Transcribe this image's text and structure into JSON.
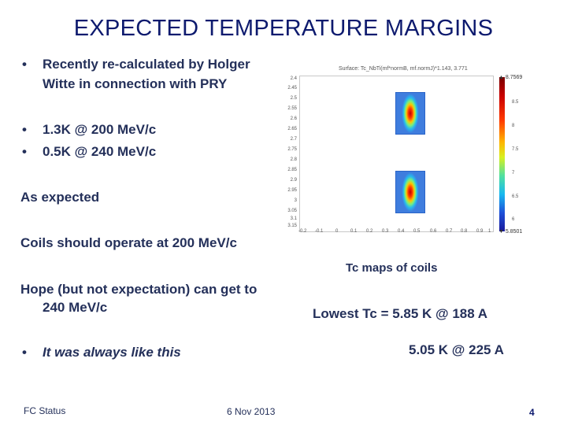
{
  "title": "EXPECTED TEMPERATURE MARGINS",
  "bullets_top": [
    "Recently re-calculated by Holger",
    "Witte in connection with PRY"
  ],
  "bullet_marker": "•",
  "bullets_mid": [
    "1.3K @ 200 MeV/c",
    "0.5K @ 240 MeV/c"
  ],
  "as_expected": "As expected",
  "coils_operate": "Coils should operate at 200 MeV/c",
  "hope_line1": "Hope (but not expectation) can get to",
  "hope_line2": "240 MeV/c",
  "always": "It was always like this",
  "plot": {
    "caption": "Surface: Tc_NbTi(mf*normB, mf.normJ)*1.143, 3.771",
    "y_ticks": [
      "2.4",
      "2.45",
      "2.5",
      "2.55",
      "2.6",
      "2.65",
      "2.7",
      "2.75",
      "2.8",
      "2.85",
      "2.9",
      "2.95",
      "3",
      "3.05",
      "3.1",
      "3.15"
    ],
    "x_ticks": [
      "-0.2",
      "-0.1",
      "0",
      "0.1",
      "0.2",
      "0.3",
      "0.4",
      "0.5",
      "0.6",
      "0.7",
      "0.8",
      "0.9",
      "1"
    ],
    "colorbar_max": "▲ 8.7569",
    "colorbar_ticks": [
      "8.5",
      "8",
      "7.5",
      "7",
      "6.5",
      "6"
    ],
    "colorbar_min": "▼ 5.8501"
  },
  "tc_maps": "Tc maps of coils",
  "lowest_tc": "Lowest Tc = 5.85 K @ 188 A",
  "second_tc": "5.05 K @ 225 A",
  "footer": {
    "left": "FC Status",
    "date": "6 Nov 2013",
    "page": "4"
  }
}
